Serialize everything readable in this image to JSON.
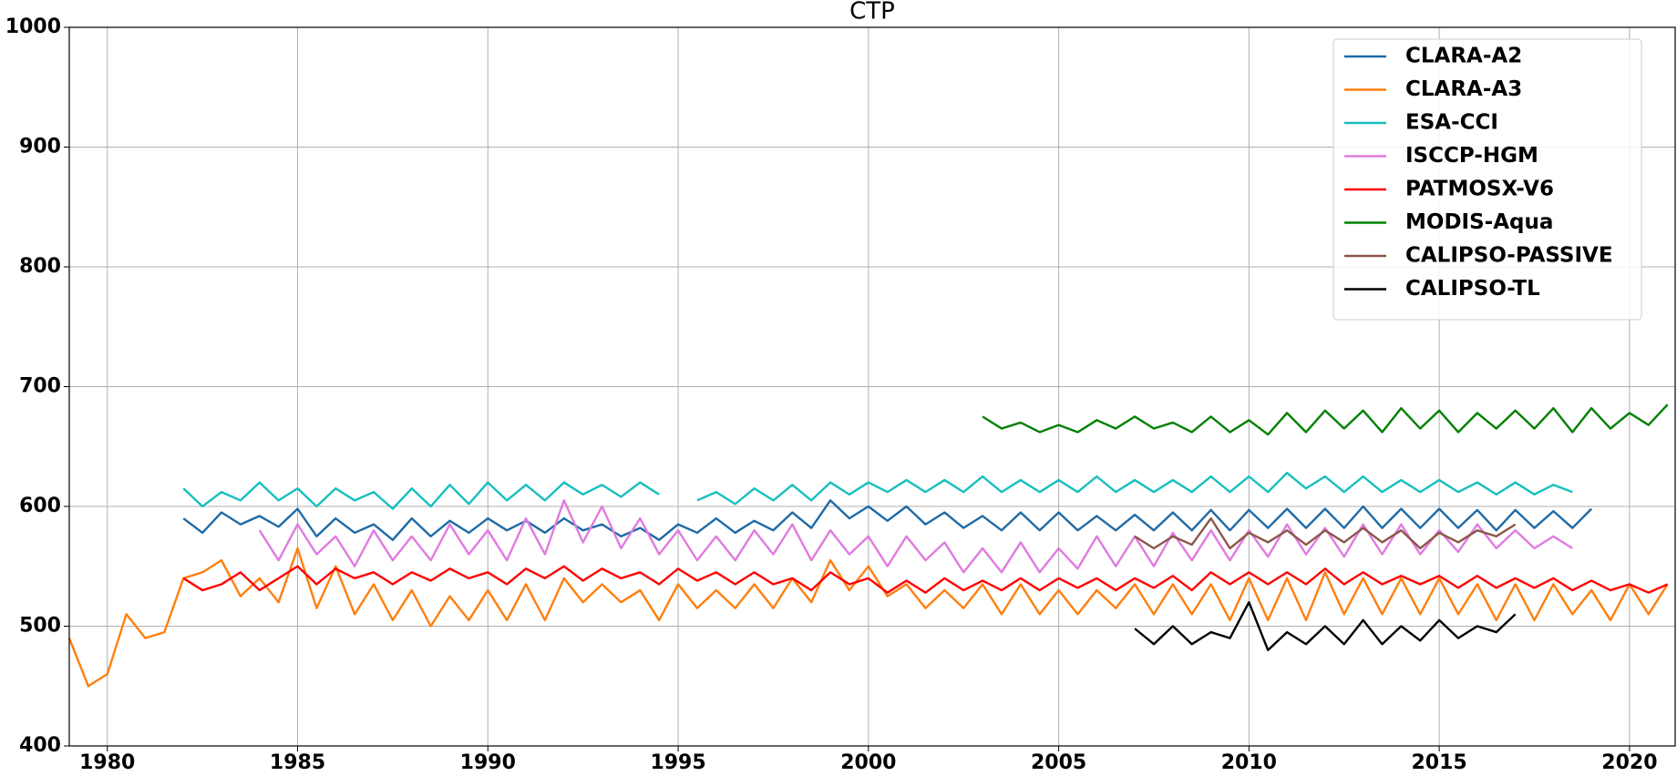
{
  "chart_data": {
    "type": "line",
    "title": "CTP",
    "x": [
      1979.0,
      1979.5,
      1980.0,
      1980.5,
      1981.0,
      1981.5,
      1982.0,
      1982.5,
      1983.0,
      1983.5,
      1984.0,
      1984.5,
      1985.0,
      1985.5,
      1986.0,
      1986.5,
      1987.0,
      1987.5,
      1988.0,
      1988.5,
      1989.0,
      1989.5,
      1990.0,
      1990.5,
      1991.0,
      1991.5,
      1992.0,
      1992.5,
      1993.0,
      1993.5,
      1994.0,
      1994.5,
      1995.0,
      1995.5,
      1996.0,
      1996.5,
      1997.0,
      1997.5,
      1998.0,
      1998.5,
      1999.0,
      1999.5,
      2000.0,
      2000.5,
      2001.0,
      2001.5,
      2002.0,
      2002.5,
      2003.0,
      2003.5,
      2004.0,
      2004.5,
      2005.0,
      2005.5,
      2006.0,
      2006.5,
      2007.0,
      2007.5,
      2008.0,
      2008.5,
      2009.0,
      2009.5,
      2010.0,
      2010.5,
      2011.0,
      2011.5,
      2012.0,
      2012.5,
      2013.0,
      2013.5,
      2014.0,
      2014.5,
      2015.0,
      2015.5,
      2016.0,
      2016.5,
      2017.0,
      2017.5,
      2018.0,
      2018.5,
      2019.0,
      2019.5,
      2020.0,
      2020.5,
      2021.0
    ],
    "series": [
      {
        "name": "CLARA-A2",
        "color": "#1f6aa5",
        "values": [
          null,
          null,
          null,
          null,
          null,
          null,
          590,
          578,
          595,
          585,
          592,
          583,
          598,
          575,
          590,
          578,
          585,
          572,
          590,
          575,
          588,
          578,
          590,
          580,
          588,
          578,
          590,
          580,
          585,
          575,
          582,
          572,
          585,
          578,
          590,
          578,
          588,
          580,
          595,
          582,
          605,
          590,
          600,
          588,
          600,
          585,
          595,
          582,
          592,
          580,
          595,
          580,
          595,
          580,
          592,
          580,
          593,
          580,
          595,
          580,
          597,
          580,
          597,
          582,
          598,
          582,
          598,
          582,
          600,
          582,
          598,
          582,
          598,
          582,
          597,
          580,
          597,
          582,
          596,
          582,
          598,
          null,
          null,
          null,
          null
        ]
      },
      {
        "name": "CLARA-A3",
        "color": "#ff7f0e",
        "values": [
          490,
          450,
          460,
          510,
          490,
          495,
          540,
          545,
          555,
          525,
          540,
          520,
          565,
          515,
          550,
          510,
          535,
          505,
          530,
          500,
          525,
          505,
          530,
          505,
          535,
          505,
          540,
          520,
          535,
          520,
          530,
          505,
          535,
          515,
          530,
          515,
          535,
          515,
          540,
          520,
          555,
          530,
          550,
          525,
          535,
          515,
          530,
          515,
          535,
          510,
          535,
          510,
          530,
          510,
          530,
          515,
          535,
          510,
          535,
          510,
          535,
          505,
          540,
          505,
          540,
          505,
          545,
          510,
          540,
          510,
          540,
          510,
          540,
          510,
          535,
          505,
          535,
          505,
          535,
          510,
          530,
          505,
          535,
          510,
          535
        ]
      },
      {
        "name": "ESA-CCI",
        "color": "#17bfbf",
        "values": [
          null,
          null,
          null,
          null,
          null,
          null,
          615,
          600,
          612,
          605,
          620,
          605,
          615,
          600,
          615,
          605,
          612,
          598,
          615,
          600,
          618,
          602,
          620,
          605,
          618,
          605,
          620,
          610,
          618,
          608,
          620,
          610,
          null,
          605,
          612,
          602,
          615,
          605,
          618,
          605,
          620,
          610,
          620,
          612,
          622,
          612,
          622,
          612,
          625,
          612,
          622,
          612,
          622,
          612,
          625,
          612,
          622,
          612,
          622,
          612,
          625,
          612,
          625,
          612,
          628,
          615,
          625,
          612,
          625,
          612,
          622,
          612,
          622,
          612,
          620,
          610,
          620,
          610,
          618,
          612,
          null,
          null,
          null,
          null,
          null
        ]
      },
      {
        "name": "ISCCP-HGM",
        "color": "#e07be0",
        "values": [
          null,
          null,
          null,
          null,
          null,
          null,
          null,
          null,
          null,
          null,
          580,
          555,
          585,
          560,
          575,
          550,
          580,
          555,
          575,
          555,
          585,
          560,
          580,
          555,
          590,
          560,
          605,
          570,
          600,
          565,
          590,
          560,
          580,
          555,
          575,
          555,
          580,
          560,
          585,
          555,
          580,
          560,
          575,
          550,
          575,
          555,
          570,
          545,
          565,
          545,
          570,
          545,
          565,
          548,
          575,
          550,
          575,
          550,
          578,
          555,
          580,
          555,
          580,
          558,
          585,
          560,
          582,
          558,
          585,
          560,
          585,
          560,
          580,
          562,
          585,
          565,
          580,
          565,
          575,
          565,
          null,
          null,
          null,
          null,
          null
        ]
      },
      {
        "name": "PATMOSX-V6",
        "color": "#ff0000",
        "values": [
          null,
          null,
          null,
          null,
          null,
          null,
          540,
          530,
          535,
          545,
          530,
          540,
          550,
          535,
          548,
          540,
          545,
          535,
          545,
          538,
          548,
          540,
          545,
          535,
          548,
          540,
          550,
          538,
          548,
          540,
          545,
          535,
          548,
          538,
          545,
          535,
          545,
          535,
          540,
          530,
          545,
          535,
          540,
          528,
          538,
          528,
          540,
          530,
          538,
          530,
          540,
          530,
          540,
          532,
          540,
          530,
          540,
          532,
          542,
          530,
          545,
          535,
          545,
          535,
          545,
          535,
          548,
          535,
          545,
          535,
          542,
          535,
          542,
          532,
          542,
          532,
          540,
          532,
          540,
          530,
          538,
          530,
          535,
          528,
          535
        ]
      },
      {
        "name": "MODIS-Aqua",
        "color": "#008000",
        "values": [
          null,
          null,
          null,
          null,
          null,
          null,
          null,
          null,
          null,
          null,
          null,
          null,
          null,
          null,
          null,
          null,
          null,
          null,
          null,
          null,
          null,
          null,
          null,
          null,
          null,
          null,
          null,
          null,
          null,
          null,
          null,
          null,
          null,
          null,
          null,
          null,
          null,
          null,
          null,
          null,
          null,
          null,
          null,
          null,
          null,
          null,
          null,
          null,
          675,
          665,
          670,
          662,
          668,
          662,
          672,
          665,
          675,
          665,
          670,
          662,
          675,
          662,
          672,
          660,
          678,
          662,
          680,
          665,
          680,
          662,
          682,
          665,
          680,
          662,
          678,
          665,
          680,
          665,
          682,
          662,
          682,
          665,
          678,
          668,
          685
        ]
      },
      {
        "name": "CALIPSO-PASSIVE",
        "color": "#8c564b",
        "values": [
          null,
          null,
          null,
          null,
          null,
          null,
          null,
          null,
          null,
          null,
          null,
          null,
          null,
          null,
          null,
          null,
          null,
          null,
          null,
          null,
          null,
          null,
          null,
          null,
          null,
          null,
          null,
          null,
          null,
          null,
          null,
          null,
          null,
          null,
          null,
          null,
          null,
          null,
          null,
          null,
          null,
          null,
          null,
          null,
          null,
          null,
          null,
          null,
          null,
          null,
          null,
          null,
          null,
          null,
          null,
          null,
          575,
          565,
          575,
          568,
          590,
          565,
          578,
          570,
          580,
          568,
          580,
          570,
          582,
          570,
          580,
          565,
          578,
          570,
          580,
          575,
          585,
          null,
          null,
          null,
          null,
          null,
          null,
          null,
          null
        ]
      },
      {
        "name": "CALIPSO-TL",
        "color": "#000000",
        "values": [
          null,
          null,
          null,
          null,
          null,
          null,
          null,
          null,
          null,
          null,
          null,
          null,
          null,
          null,
          null,
          null,
          null,
          null,
          null,
          null,
          null,
          null,
          null,
          null,
          null,
          null,
          null,
          null,
          null,
          null,
          null,
          null,
          null,
          null,
          null,
          null,
          null,
          null,
          null,
          null,
          null,
          null,
          null,
          null,
          null,
          null,
          null,
          null,
          null,
          null,
          null,
          null,
          null,
          null,
          null,
          null,
          498,
          485,
          500,
          485,
          495,
          490,
          520,
          480,
          495,
          485,
          500,
          485,
          505,
          485,
          500,
          488,
          505,
          490,
          500,
          495,
          510,
          null,
          null,
          null,
          null,
          null,
          null,
          null,
          null
        ]
      }
    ],
    "xlim": [
      1979,
      2021.2
    ],
    "xticks": [
      1980,
      1985,
      1990,
      1995,
      2000,
      2005,
      2010,
      2015,
      2020
    ],
    "ylim": [
      400,
      1000
    ],
    "yticks": [
      400,
      500,
      600,
      700,
      800,
      900,
      1000
    ],
    "grid": true,
    "legend": "upper right"
  }
}
